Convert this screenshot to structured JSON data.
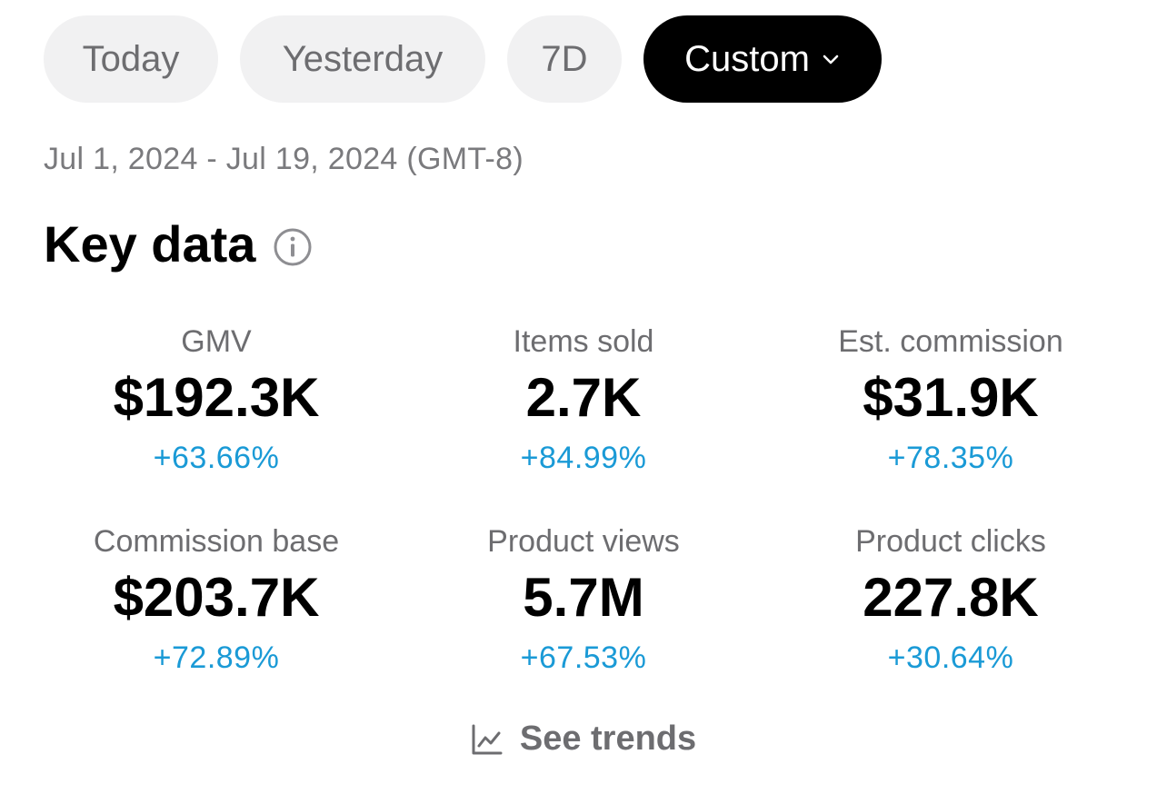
{
  "filters": {
    "today_label": "Today",
    "yesterday_label": "Yesterday",
    "seven_day_label": "7D",
    "custom_label": "Custom",
    "selected": "Custom"
  },
  "date_range": "Jul 1, 2024 - Jul 19, 2024 (GMT-8)",
  "key_data": {
    "title": "Key data",
    "metrics": [
      {
        "label": "GMV",
        "value": "$192.3K",
        "change": "+63.66%"
      },
      {
        "label": "Items sold",
        "value": "2.7K",
        "change": "+84.99%"
      },
      {
        "label": "Est. commission",
        "value": "$31.9K",
        "change": "+78.35%"
      },
      {
        "label": "Commission base",
        "value": "$203.7K",
        "change": "+72.89%"
      },
      {
        "label": "Product views",
        "value": "5.7M",
        "change": "+67.53%"
      },
      {
        "label": "Product clicks",
        "value": "227.8K",
        "change": "+30.64%"
      }
    ]
  },
  "see_trends_label": "See trends",
  "colors": {
    "positive_change": "#1a9ad6",
    "selected_chip_bg": "#000000",
    "chip_bg": "#f1f1f2",
    "muted_text": "#6d6d70"
  },
  "icons": {
    "info": "info-icon",
    "dropdown": "chevron-down-icon",
    "trends": "line-chart-icon"
  }
}
